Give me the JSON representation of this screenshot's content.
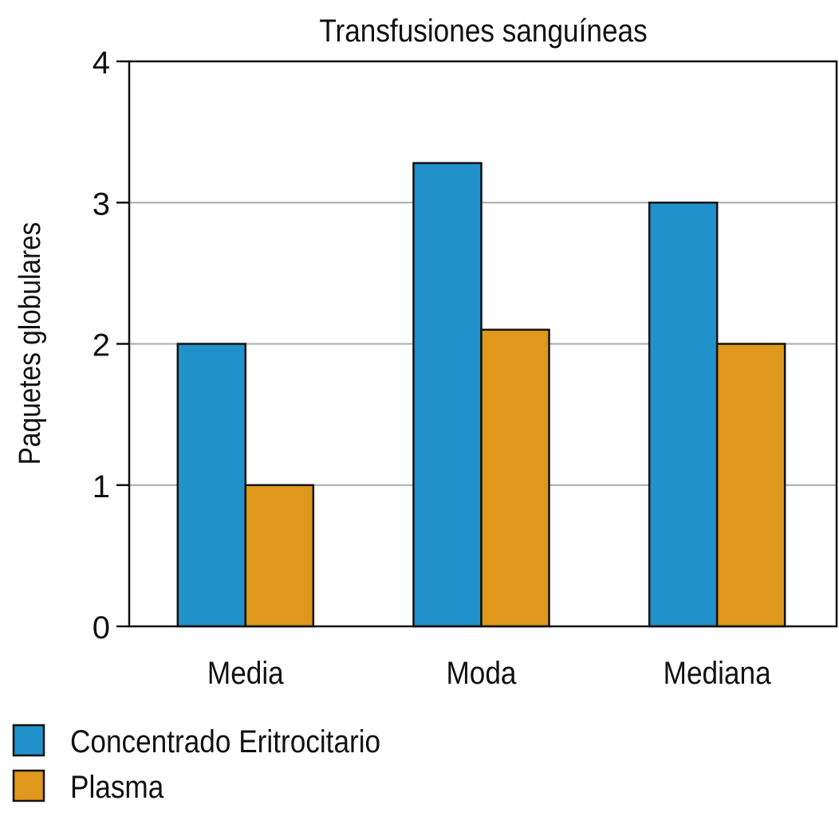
{
  "chart_data": {
    "type": "bar",
    "title": "Transfusiones sanguíneas",
    "xlabel": "",
    "ylabel": "Paquetes globulares",
    "ylim": [
      0,
      4
    ],
    "yticks": [
      "0",
      "1",
      "2",
      "3",
      "4"
    ],
    "grid": true,
    "categories": [
      "Media",
      "Moda",
      "Mediana"
    ],
    "series": [
      {
        "name": "Concentrado Eritrocitario",
        "color": "#2191cb",
        "values": [
          2,
          3.28,
          3
        ]
      },
      {
        "name": "Plasma",
        "color": "#e0981c",
        "values": [
          1,
          2.1,
          2
        ]
      }
    ],
    "legend_position": "bottom-left"
  }
}
